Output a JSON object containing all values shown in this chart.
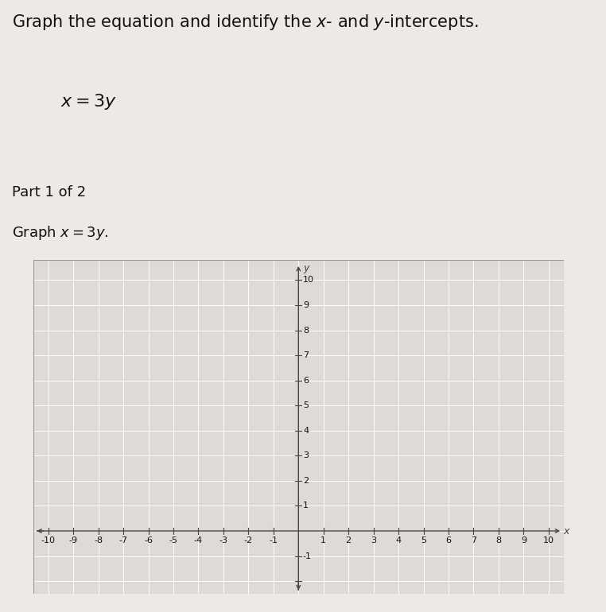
{
  "title": "Graph the equation and identify the $x$- and $y$-intercepts.",
  "equation": "$x = 3y$",
  "part_label": "Part 1 of 2",
  "graph_label": "Graph $x = 3y$.",
  "xmin": -10,
  "xmax": 10,
  "ymin": -2,
  "ymax": 10,
  "bg_color": "#ede9e5",
  "plot_bg_color": "#dedad6",
  "part_bg_color": "#b8b4b0",
  "grid_color": "#ffffff",
  "axis_color": "#444444",
  "text_color": "#111111",
  "title_fontsize": 15,
  "eq_fontsize": 16,
  "part_fontsize": 13,
  "glabel_fontsize": 13,
  "tick_fontsize": 8
}
